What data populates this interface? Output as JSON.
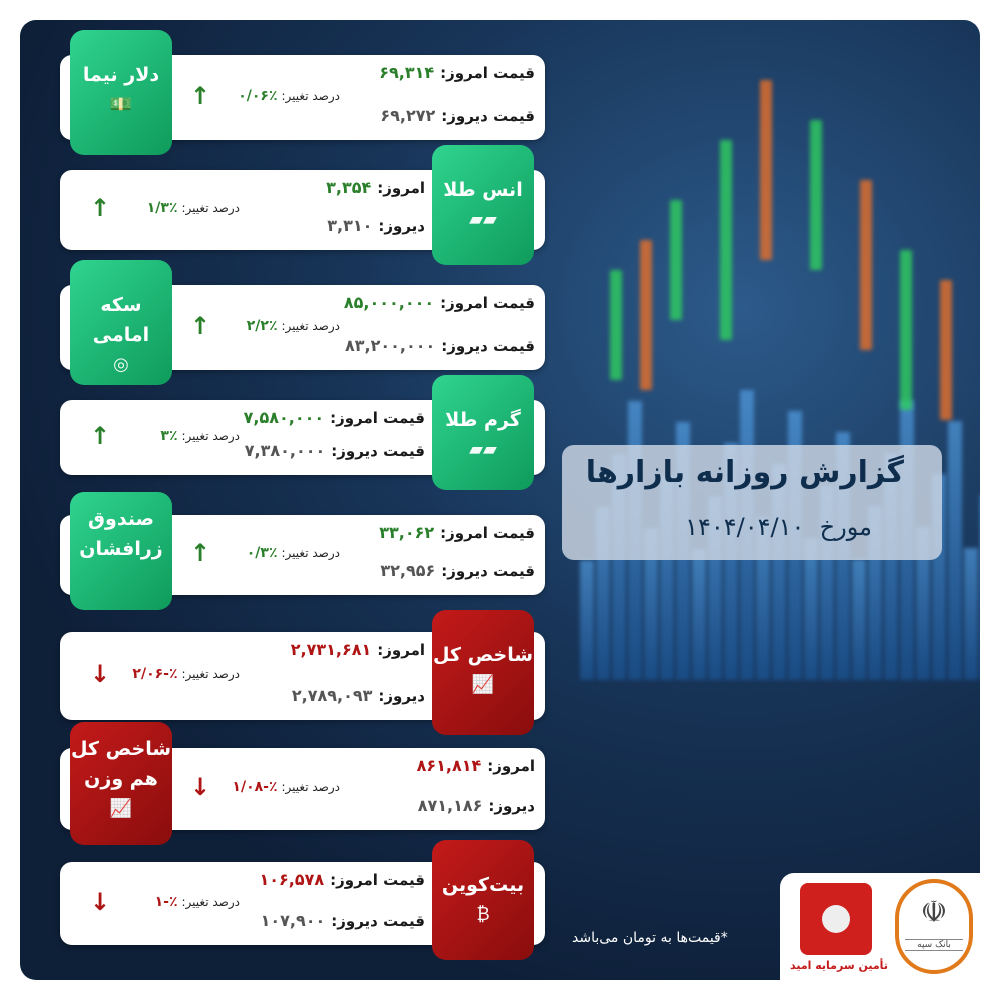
{
  "header": {
    "title": "گزارش روزانه بازارها",
    "date_label": "مورخ",
    "date": "۱۴۰۴/۰۴/۱۰"
  },
  "change_label": "درصد تغییر:",
  "colors": {
    "green": "#1bbf78",
    "red": "#b01515",
    "up": "#2a7f2a",
    "down": "#b01515"
  },
  "items": [
    {
      "name": "دلار نیما",
      "icon": "banknote-icon",
      "today_label": "قیمت امروز:",
      "today": "۶۹,۳۱۴",
      "yesterday_label": "قیمت دیروز:",
      "yesterday": "۶۹,۲۷۲",
      "change": "٪۰/۰۶",
      "direction": "up"
    },
    {
      "name": "انس طلا",
      "icon": "gold-bars-icon",
      "today_label": "امروز:",
      "today": "۳,۳۵۴",
      "yesterday_label": "دیروز:",
      "yesterday": "۳,۳۱۰",
      "change": "٪۱/۳",
      "direction": "up"
    },
    {
      "name": "سکه امامی",
      "icon": "coins-icon",
      "today_label": "قیمت امروز:",
      "today": "۸۵,۰۰۰,۰۰۰",
      "yesterday_label": "قیمت دیروز:",
      "yesterday": "۸۳,۲۰۰,۰۰۰",
      "change": "٪۲/۲",
      "direction": "up"
    },
    {
      "name": "گرم طلا",
      "icon": "gold-bars-icon",
      "today_label": "قیمت امروز:",
      "today": "۷,۵۸۰,۰۰۰",
      "yesterday_label": "قیمت دیروز:",
      "yesterday": "۷,۳۸۰,۰۰۰",
      "change": "٪۳",
      "direction": "up"
    },
    {
      "name": "صندوق زرافشان",
      "icon": "",
      "today_label": "قیمت امروز:",
      "today": "۳۳,۰۶۲",
      "yesterday_label": "قیمت دیروز:",
      "yesterday": "۳۲,۹۵۶",
      "change": "٪۰/۳",
      "direction": "up"
    },
    {
      "name": "شاخص کل",
      "icon": "chart-growth-icon",
      "today_label": "امروز:",
      "today": "۲,۷۳۱,۶۸۱",
      "yesterday_label": "دیروز:",
      "yesterday": "۲,۷۸۹,۰۹۳",
      "change": "٪-۲/۰۶",
      "direction": "down"
    },
    {
      "name": "شاخص کل هم وزن",
      "icon": "chart-growth-icon",
      "today_label": "امروز:",
      "today": "۸۶۱,۸۱۴",
      "yesterday_label": "دیروز:",
      "yesterday": "۸۷۱,۱۸۶",
      "change": "٪-۱/۰۸",
      "direction": "down"
    },
    {
      "name": "بیت‌کوین",
      "icon": "bitcoin-icon",
      "today_label": "قیمت امروز:",
      "today": "۱۰۶,۵۷۸",
      "yesterday_label": "قیمت دیروز:",
      "yesterday": "۱۰۷,۹۰۰",
      "change": "٪-۱",
      "direction": "down"
    }
  ],
  "footer": {
    "note": "*قیمت‌ها به تومان می‌باشد",
    "logo1_name": "تأمین سرمایه امید",
    "logo2_name": "بانک سپه"
  }
}
